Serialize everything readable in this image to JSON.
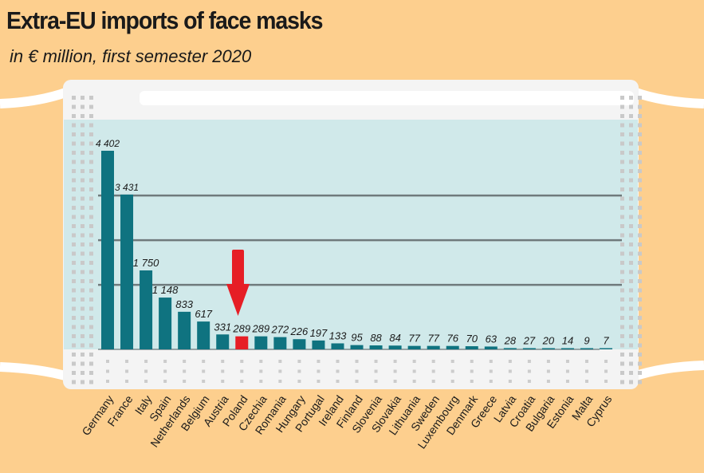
{
  "chart_data": {
    "type": "bar",
    "title": "Extra-EU imports of face masks",
    "subtitle": "in € million, first semester 2020",
    "xlabel": "",
    "ylabel": "",
    "ylim": [
      0,
      4600
    ],
    "gridlines": [
      1430,
      2420,
      3410
    ],
    "categories": [
      "Germany",
      "France",
      "Italy",
      "Spain",
      "Netherlands",
      "Belgium",
      "Austria",
      "Poland",
      "Czechia",
      "Romania",
      "Hungary",
      "Portugal",
      "Ireland",
      "Finland",
      "Slovenia",
      "Slovakia",
      "Lithuania",
      "Sweden",
      "Luxembourg",
      "Denmark",
      "Greece",
      "Latvia",
      "Croatia",
      "Bulgaria",
      "Estonia",
      "Malta",
      "Cyprus"
    ],
    "values": [
      4402,
      3431,
      1750,
      1148,
      833,
      617,
      331,
      289,
      289,
      272,
      226,
      197,
      133,
      95,
      88,
      84,
      77,
      77,
      76,
      70,
      63,
      28,
      27,
      20,
      14,
      9,
      7
    ],
    "labels": [
      "4 402",
      "3 431",
      "1 750",
      "1 148",
      "833",
      "617",
      "331",
      "289",
      "289",
      "272",
      "226",
      "197",
      "133",
      "95",
      "88",
      "84",
      "77",
      "77",
      "76",
      "70",
      "63",
      "28",
      "27",
      "20",
      "14",
      "9",
      "7"
    ],
    "highlight": "Poland",
    "colors": {
      "bar": "#0f7380",
      "highlight": "#e61e25",
      "plot_bg": "#d0e9ea",
      "background": "#fdcf8e",
      "grid": "#6f7a7c"
    }
  }
}
